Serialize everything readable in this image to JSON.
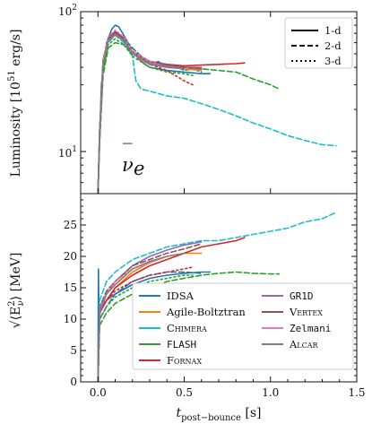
{
  "chart_data": [
    {
      "type": "line",
      "panel": "top",
      "ylabel": "Luminosity [10^51 erg/s]",
      "ylabel_parts": [
        "Luminosity [10",
        "51",
        " erg/s]"
      ],
      "yscale": "log",
      "ylim": [
        5,
        100
      ],
      "xlim": [
        -0.1,
        1.5
      ],
      "yticks": [
        {
          "value": 10,
          "label": "10",
          "sup": "1"
        },
        {
          "value": 100,
          "label": "10",
          "sup": "2"
        }
      ],
      "annotation": {
        "base": "ν",
        "accent": "‾",
        "sub": "e"
      },
      "style_legend": [
        {
          "label": "1-d",
          "dash": "solid"
        },
        {
          "label": "2-d",
          "dash": "dashed"
        },
        {
          "label": "3-d",
          "dash": "dotted"
        }
      ],
      "series": [
        {
          "code": "IDSA",
          "dim": "1-d",
          "x": [
            0,
            0.005,
            0.02,
            0.05,
            0.08,
            0.1,
            0.12,
            0.15,
            0.2,
            0.25,
            0.3,
            0.4,
            0.5,
            0.6,
            0.65
          ],
          "y": [
            5,
            8,
            30,
            60,
            75,
            80,
            78,
            68,
            52,
            44,
            40,
            38,
            37,
            36,
            36
          ]
        },
        {
          "code": "IDSA",
          "dim": "2-d",
          "x": [
            0,
            0.01,
            0.03,
            0.06,
            0.1,
            0.15,
            0.2,
            0.25,
            0.3,
            0.35,
            0.4,
            0.45,
            0.5,
            0.55,
            0.6
          ],
          "y": [
            5,
            12,
            40,
            62,
            70,
            65,
            55,
            48,
            42,
            44,
            40,
            41,
            38,
            39,
            37
          ]
        },
        {
          "code": "Agile-Boltztran",
          "dim": "1-d",
          "x": [
            0,
            0.01,
            0.03,
            0.06,
            0.1,
            0.15,
            0.2,
            0.25,
            0.3,
            0.4,
            0.5,
            0.6
          ],
          "y": [
            5,
            14,
            42,
            63,
            70,
            64,
            52,
            45,
            42,
            40,
            39,
            38
          ]
        },
        {
          "code": "Chimera",
          "dim": "2-d",
          "x": [
            0,
            0.01,
            0.03,
            0.06,
            0.1,
            0.15,
            0.2,
            0.22,
            0.25,
            0.3,
            0.4,
            0.5,
            0.6,
            0.7,
            0.8,
            0.9,
            1.0,
            1.1,
            1.2,
            1.3,
            1.38
          ],
          "y": [
            5,
            14,
            40,
            60,
            68,
            60,
            48,
            32,
            28,
            27,
            25,
            24,
            22,
            20,
            18,
            16,
            14.5,
            13,
            12,
            11.2,
            11
          ]
        },
        {
          "code": "FLASH",
          "dim": "2-d",
          "x": [
            0,
            0.01,
            0.03,
            0.06,
            0.1,
            0.15,
            0.2,
            0.3,
            0.4,
            0.5,
            0.6,
            0.7,
            0.8,
            0.9,
            1.0,
            1.05
          ],
          "y": [
            5,
            12,
            35,
            55,
            60,
            58,
            50,
            42,
            41,
            40,
            39,
            38,
            37,
            33,
            30,
            28
          ]
        },
        {
          "code": "FLASH",
          "dim": "3-d",
          "x": [
            0,
            0.01,
            0.03,
            0.06,
            0.1,
            0.15,
            0.2,
            0.3,
            0.4,
            0.5,
            0.55
          ],
          "y": [
            5,
            12,
            38,
            58,
            64,
            58,
            48,
            40,
            37,
            36,
            35
          ]
        },
        {
          "code": "Fornax",
          "dim": "1-d",
          "x": [
            0,
            0.01,
            0.03,
            0.06,
            0.1,
            0.15,
            0.2,
            0.3,
            0.4,
            0.5,
            0.6,
            0.7,
            0.8,
            0.85
          ],
          "y": [
            5,
            14,
            45,
            65,
            72,
            65,
            52,
            44,
            42,
            41,
            41.5,
            42,
            42.5,
            43
          ]
        },
        {
          "code": "Fornax",
          "dim": "3-d",
          "x": [
            0,
            0.01,
            0.03,
            0.06,
            0.1,
            0.15,
            0.2,
            0.3,
            0.4,
            0.5,
            0.55
          ],
          "y": [
            5,
            14,
            42,
            65,
            72,
            64,
            52,
            42,
            38,
            32,
            30
          ]
        },
        {
          "code": "GR1D",
          "dim": "1-d",
          "x": [
            0,
            0.01,
            0.03,
            0.06,
            0.1,
            0.15,
            0.2,
            0.3,
            0.4,
            0.5,
            0.6
          ],
          "y": [
            5,
            14,
            44,
            64,
            70,
            62,
            50,
            43,
            41,
            40,
            40
          ]
        },
        {
          "code": "Vertex",
          "dim": "2-d",
          "x": [
            0,
            0.01,
            0.03,
            0.06,
            0.1,
            0.15,
            0.2,
            0.3,
            0.4,
            0.5,
            0.6
          ],
          "y": [
            5,
            14,
            44,
            64,
            71,
            64,
            52,
            44,
            42,
            40,
            39
          ]
        },
        {
          "code": "Zelmani",
          "dim": "3-d",
          "x": [
            0,
            0.01,
            0.03,
            0.06,
            0.1,
            0.15,
            0.2,
            0.3,
            0.35
          ],
          "y": [
            5,
            14,
            44,
            66,
            74,
            66,
            52,
            44,
            42
          ]
        },
        {
          "code": "Alcar",
          "dim": "1-d",
          "x": [
            0,
            0.01,
            0.03,
            0.06,
            0.1,
            0.15,
            0.2,
            0.3,
            0.4,
            0.5
          ],
          "y": [
            5,
            14,
            42,
            62,
            68,
            62,
            50,
            42,
            40,
            39
          ]
        }
      ]
    },
    {
      "type": "line",
      "panel": "bottom",
      "ylabel": "√⟨E²_ν⟩ [MeV]",
      "ylabel_parts": [
        "√",
        "⟨E",
        "2",
        "ν",
        "⟩ [MeV]"
      ],
      "ylim": [
        0,
        30
      ],
      "xlim": [
        -0.1,
        1.5
      ],
      "yticks": [
        0,
        5,
        10,
        15,
        20,
        25
      ],
      "xticks": [
        "0.0",
        "0.5",
        "1.0",
        "1.5"
      ],
      "xticks_values": [
        0,
        0.5,
        1.0,
        1.5
      ],
      "xlabel_parts": [
        "t",
        "post−bounce",
        " [s]"
      ],
      "legend": [
        {
          "code": "IDSA",
          "label": "IDSA",
          "color": "#1f77b4",
          "style": "serif"
        },
        {
          "code": "GR1D",
          "label": "GR1D",
          "color": "#9467bd",
          "style": "mono"
        },
        {
          "code": "Agile-Boltztran",
          "label": "Agile-Boltztran",
          "color": "#ff7f0e",
          "style": "serif"
        },
        {
          "code": "Vertex",
          "label": "Vertex",
          "color": "#8c564b",
          "style": "smallcaps"
        },
        {
          "code": "Chimera",
          "label": "Chimera",
          "color": "#17becf",
          "style": "smallcaps"
        },
        {
          "code": "Zelmani",
          "label": "Zelmani",
          "color": "#e377c2",
          "style": "mono"
        },
        {
          "code": "FLASH",
          "label": "FLASH",
          "color": "#2ca02c",
          "style": "mono"
        },
        {
          "code": "Alcar",
          "label": "Alcar",
          "color": "#7f7f7f",
          "style": "smallcaps"
        },
        {
          "code": "Fornax",
          "label": "Fornax",
          "color": "#d62728",
          "style": "smallcaps"
        }
      ],
      "series": [
        {
          "code": "IDSA",
          "dim": "1-d",
          "x": [
            0,
            0.003,
            0.006,
            0.02,
            0.05,
            0.1,
            0.2,
            0.3,
            0.4,
            0.5,
            0.6,
            0.65
          ],
          "y": [
            0,
            18,
            10,
            12,
            13,
            14,
            15.5,
            16.5,
            17,
            17.3,
            17.5,
            17.5
          ]
        },
        {
          "code": "IDSA",
          "dim": "2-d",
          "x": [
            0,
            0.01,
            0.05,
            0.1,
            0.2,
            0.3,
            0.4,
            0.5,
            0.6
          ],
          "y": [
            0,
            10,
            12,
            14,
            16,
            17,
            17.5,
            17.5,
            17.3
          ]
        },
        {
          "code": "Agile-Boltztran",
          "dim": "1-d",
          "x": [
            0,
            0.01,
            0.05,
            0.1,
            0.2,
            0.3,
            0.4,
            0.5,
            0.6
          ],
          "y": [
            0,
            11,
            13,
            15,
            17.5,
            19,
            20,
            20.5,
            20.5
          ]
        },
        {
          "code": "Chimera",
          "dim": "2-d",
          "x": [
            0,
            0.01,
            0.05,
            0.1,
            0.2,
            0.3,
            0.4,
            0.5,
            0.6,
            0.7,
            0.8,
            0.9,
            1.0,
            1.1,
            1.2,
            1.3,
            1.38
          ],
          "y": [
            0,
            13,
            16,
            17.5,
            19.5,
            20.5,
            21.5,
            22,
            22.5,
            22.5,
            23,
            23.5,
            24,
            24.5,
            25.5,
            26,
            27
          ]
        },
        {
          "code": "FLASH",
          "dim": "2-d",
          "x": [
            0,
            0.01,
            0.05,
            0.1,
            0.2,
            0.3,
            0.4,
            0.5,
            0.6,
            0.7,
            0.8,
            0.9,
            1.0,
            1.05
          ],
          "y": [
            0,
            9,
            11,
            12.5,
            14,
            15,
            16,
            16.5,
            17,
            17.3,
            17.5,
            17.3,
            17.2,
            17.2
          ]
        },
        {
          "code": "FLASH",
          "dim": "3-d",
          "x": [
            0,
            0.01,
            0.05,
            0.1,
            0.2,
            0.3,
            0.4,
            0.5,
            0.55
          ],
          "y": [
            0,
            10,
            12,
            13.5,
            15,
            16,
            16.5,
            17,
            17
          ]
        },
        {
          "code": "Fornax",
          "dim": "1-d",
          "x": [
            0,
            0.01,
            0.05,
            0.1,
            0.2,
            0.3,
            0.4,
            0.5,
            0.6,
            0.7,
            0.8,
            0.85
          ],
          "y": [
            0,
            11,
            13,
            15,
            17,
            18.5,
            19.5,
            20.5,
            21.5,
            22,
            22.5,
            23
          ]
        },
        {
          "code": "Fornax",
          "dim": "3-d",
          "x": [
            0,
            0.01,
            0.05,
            0.1,
            0.2,
            0.3,
            0.4,
            0.5,
            0.55
          ],
          "y": [
            0,
            11,
            13,
            14.5,
            16,
            17,
            17.5,
            18,
            18.3
          ]
        },
        {
          "code": "GR1D",
          "dim": "1-d",
          "x": [
            0,
            0.01,
            0.05,
            0.1,
            0.2,
            0.3,
            0.4,
            0.5,
            0.6
          ],
          "y": [
            0,
            11,
            14,
            16,
            18.5,
            20,
            21,
            21.8,
            22.3
          ]
        },
        {
          "code": "Vertex",
          "dim": "2-d",
          "x": [
            0,
            0.01,
            0.05,
            0.1,
            0.2,
            0.3,
            0.4,
            0.5,
            0.6
          ],
          "y": [
            0,
            12,
            14.5,
            16,
            18.5,
            19.5,
            20.5,
            21.2,
            22
          ]
        },
        {
          "code": "Zelmani",
          "dim": "3-d",
          "x": [
            0,
            0.01,
            0.05,
            0.1,
            0.2,
            0.3,
            0.35
          ],
          "y": [
            0,
            12,
            14,
            16,
            18,
            19,
            19.5
          ]
        },
        {
          "code": "Alcar",
          "dim": "1-d",
          "x": [
            0,
            0.01,
            0.05,
            0.1,
            0.2,
            0.3,
            0.4,
            0.5
          ],
          "y": [
            0,
            12,
            14,
            15.5,
            18,
            19.2,
            20,
            20.5
          ]
        }
      ]
    }
  ]
}
